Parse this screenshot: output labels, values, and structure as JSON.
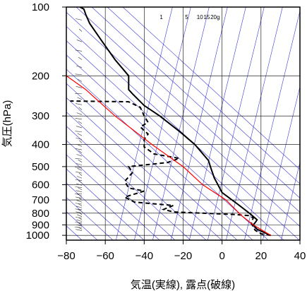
{
  "chart_data": {
    "type": "line",
    "title": "",
    "xlabel": "気温(実線), 露点(破線)",
    "ylabel": "気圧(hPa)",
    "x_range": [
      -80,
      40
    ],
    "x_ticks": [
      "−80",
      "−60",
      "−40",
      "−20",
      "0",
      "20",
      "40"
    ],
    "x_tick_values": [
      -80,
      -60,
      -40,
      -20,
      0,
      20,
      40
    ],
    "y_scale": "log",
    "y_range": [
      1050,
      100
    ],
    "y_ticks": [
      "100",
      "200",
      "300",
      "400",
      "500",
      "600",
      "700",
      "800",
      "900",
      "1000"
    ],
    "y_tick_values": [
      100,
      200,
      300,
      400,
      500,
      600,
      700,
      800,
      900,
      1000
    ],
    "grid": true,
    "mixing_ratio_labels": [
      "1",
      "5",
      "10",
      "15",
      "20g"
    ],
    "colors": {
      "temperature": "#000000",
      "dewpoint": "#000000",
      "parcel": "#ff0000",
      "background_lines": "#3b3bd6",
      "grid": "#000000"
    },
    "series": [
      {
        "style": "solid",
        "points": [
          [
            25,
            1000
          ],
          [
            22,
            975
          ],
          [
            18,
            940
          ],
          [
            16,
            900
          ],
          [
            17,
            880
          ],
          [
            18,
            855
          ],
          [
            14,
            800
          ],
          [
            8,
            730
          ],
          [
            0,
            650
          ],
          [
            -4,
            560
          ],
          [
            -6,
            500
          ],
          [
            -7,
            470
          ],
          [
            -14,
            400
          ],
          [
            -22,
            350
          ],
          [
            -32,
            300
          ],
          [
            -40,
            270
          ],
          [
            -46,
            240
          ],
          [
            -48,
            230
          ],
          [
            -48,
            200
          ],
          [
            -55,
            170
          ],
          [
            -62,
            140
          ],
          [
            -68,
            118
          ],
          [
            -70,
            108
          ],
          [
            -71,
            102
          ],
          [
            -73,
            100
          ]
        ]
      },
      {
        "style": "dashed",
        "points": [
          [
            25,
            1000
          ],
          [
            20,
            985
          ],
          [
            17,
            950
          ],
          [
            16,
            920
          ],
          [
            15,
            880
          ],
          [
            16,
            840
          ],
          [
            14,
            820
          ],
          [
            6,
            810
          ],
          [
            -10,
            800
          ],
          [
            -25,
            790
          ],
          [
            -30,
            770
          ],
          [
            -25,
            740
          ],
          [
            -45,
            715
          ],
          [
            -50,
            680
          ],
          [
            -40,
            640
          ],
          [
            -48,
            620
          ],
          [
            -50,
            580
          ],
          [
            -46,
            530
          ],
          [
            -48,
            500
          ],
          [
            -28,
            480
          ],
          [
            -22,
            460
          ],
          [
            -35,
            440
          ],
          [
            -40,
            410
          ],
          [
            -40,
            380
          ],
          [
            -38,
            360
          ],
          [
            -42,
            335
          ],
          [
            -38,
            320
          ],
          [
            -40,
            300
          ],
          [
            -42,
            275
          ],
          [
            -48,
            260
          ],
          [
            -78,
            258
          ]
        ]
      },
      {
        "style": "parcel",
        "points": [
          [
            25,
            1000
          ],
          [
            16,
            900
          ],
          [
            10,
            820
          ],
          [
            2,
            700
          ],
          [
            -10,
            600
          ],
          [
            -20,
            500
          ],
          [
            -36,
            400
          ],
          [
            -55,
            300
          ],
          [
            -70,
            230
          ],
          [
            -80,
            200
          ],
          [
            -88,
            160
          ]
        ]
      }
    ],
    "wind_barbs_x": -72
  }
}
